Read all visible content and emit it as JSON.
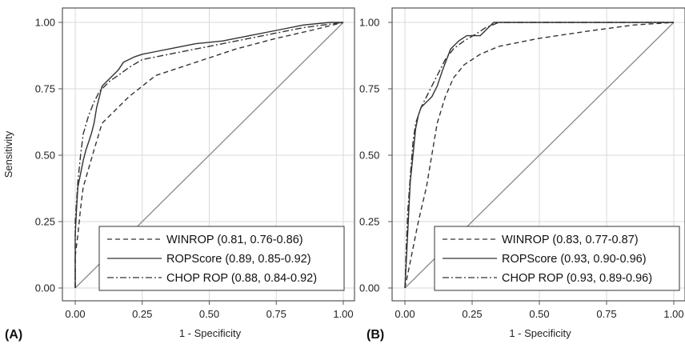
{
  "chart_data": [
    {
      "type": "line",
      "panel_label": "(A)",
      "xlabel": "1 - Specificity",
      "ylabel": "Sensitivity",
      "xlim": [
        0,
        1
      ],
      "ylim": [
        0,
        1
      ],
      "x_ticks": [
        "0.00",
        "0.25",
        "0.50",
        "0.75",
        "1.00"
      ],
      "y_ticks": [
        "0.00",
        "0.25",
        "0.50",
        "0.75",
        "1.00"
      ],
      "grid": true,
      "legend_position": "bottom-right",
      "series": [
        {
          "name": "WINROP (0.81, 0.76-0.86)",
          "dash": "6,4",
          "x": [
            0.0,
            0.0,
            0.01,
            0.02,
            0.03,
            0.05,
            0.07,
            0.1,
            0.12,
            0.14,
            0.2,
            0.3,
            0.45,
            0.6,
            0.75,
            0.88,
            1.0
          ],
          "y": [
            0.0,
            0.12,
            0.2,
            0.3,
            0.38,
            0.45,
            0.52,
            0.62,
            0.64,
            0.66,
            0.72,
            0.8,
            0.85,
            0.9,
            0.94,
            0.97,
            1.0
          ]
        },
        {
          "name": "ROPScore (0.89, 0.85-0.92)",
          "dash": "",
          "x": [
            0.0,
            0.0,
            0.005,
            0.01,
            0.02,
            0.03,
            0.04,
            0.05,
            0.06,
            0.07,
            0.08,
            0.09,
            0.1,
            0.11,
            0.12,
            0.14,
            0.16,
            0.18,
            0.2,
            0.22,
            0.25,
            0.3,
            0.35,
            0.45,
            0.55,
            0.65,
            0.75,
            0.85,
            0.95,
            1.0
          ],
          "y": [
            0.0,
            0.2,
            0.3,
            0.38,
            0.43,
            0.48,
            0.52,
            0.55,
            0.58,
            0.62,
            0.68,
            0.72,
            0.76,
            0.77,
            0.78,
            0.8,
            0.82,
            0.85,
            0.86,
            0.87,
            0.88,
            0.89,
            0.9,
            0.92,
            0.93,
            0.95,
            0.97,
            0.99,
            1.0,
            1.0
          ]
        },
        {
          "name": "CHOP ROP (0.88, 0.84-0.92)",
          "dash": "8,3,2,3",
          "x": [
            0.0,
            0.0,
            0.01,
            0.02,
            0.03,
            0.05,
            0.07,
            0.09,
            0.11,
            0.13,
            0.16,
            0.2,
            0.25,
            0.35,
            0.5,
            0.7,
            0.85,
            1.0
          ],
          "y": [
            0.0,
            0.25,
            0.4,
            0.5,
            0.58,
            0.65,
            0.7,
            0.74,
            0.76,
            0.78,
            0.8,
            0.83,
            0.86,
            0.88,
            0.91,
            0.95,
            0.98,
            1.0
          ]
        }
      ]
    },
    {
      "type": "line",
      "panel_label": "(B)",
      "xlabel": "1 - Specificity",
      "ylabel": "",
      "xlim": [
        0,
        1
      ],
      "ylim": [
        0,
        1
      ],
      "x_ticks": [
        "0.00",
        "0.25",
        "0.50",
        "0.75",
        "1.00"
      ],
      "y_ticks": [
        "0.00",
        "0.25",
        "0.50",
        "0.75",
        "1.00"
      ],
      "grid": true,
      "legend_position": "bottom-right",
      "series": [
        {
          "name": "WINROP (0.83, 0.77-0.87)",
          "dash": "6,4",
          "x": [
            0.0,
            0.01,
            0.03,
            0.05,
            0.08,
            0.1,
            0.12,
            0.15,
            0.18,
            0.22,
            0.28,
            0.35,
            0.5,
            0.7,
            0.85,
            1.0
          ],
          "y": [
            0.0,
            0.05,
            0.15,
            0.25,
            0.38,
            0.5,
            0.62,
            0.72,
            0.79,
            0.84,
            0.88,
            0.91,
            0.94,
            0.97,
            0.99,
            1.0
          ]
        },
        {
          "name": "ROPScore (0.93, 0.90-0.96)",
          "dash": "",
          "x": [
            0.0,
            0.005,
            0.01,
            0.015,
            0.02,
            0.03,
            0.04,
            0.05,
            0.06,
            0.08,
            0.1,
            0.12,
            0.14,
            0.17,
            0.2,
            0.23,
            0.28,
            0.3,
            0.33,
            0.5,
            0.75,
            1.0
          ],
          "y": [
            0.0,
            0.1,
            0.2,
            0.3,
            0.4,
            0.5,
            0.6,
            0.65,
            0.68,
            0.7,
            0.72,
            0.76,
            0.82,
            0.9,
            0.93,
            0.95,
            0.95,
            0.97,
            1.0,
            1.0,
            1.0,
            1.0
          ]
        },
        {
          "name": "CHOP ROP (0.93, 0.89-0.96)",
          "dash": "8,3,2,3",
          "x": [
            0.0,
            0.005,
            0.01,
            0.02,
            0.03,
            0.04,
            0.06,
            0.08,
            0.1,
            0.12,
            0.15,
            0.18,
            0.22,
            0.27,
            0.3,
            0.35,
            0.5,
            0.75,
            1.0
          ],
          "y": [
            0.0,
            0.15,
            0.28,
            0.42,
            0.55,
            0.62,
            0.68,
            0.72,
            0.76,
            0.8,
            0.86,
            0.9,
            0.93,
            0.96,
            0.98,
            1.0,
            1.0,
            1.0,
            1.0
          ]
        }
      ]
    }
  ]
}
